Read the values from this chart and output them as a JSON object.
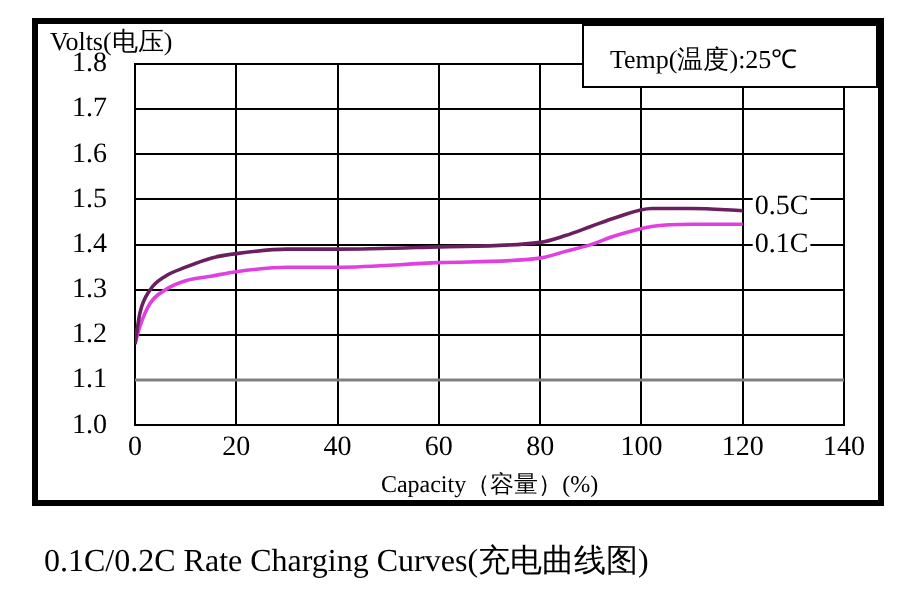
{
  "chart_data": {
    "type": "line",
    "title": "0.1C/0.2C Rate Charging Curves(充电曲线图)",
    "xlabel": "Capacity（容量）(%)",
    "ylabel": "Volts(电压)",
    "annotations": [
      "Temp(温度):25℃"
    ],
    "xlim": [
      0,
      140
    ],
    "xticks": [
      0,
      20,
      40,
      60,
      80,
      100,
      120,
      140
    ],
    "ylim": [
      1.0,
      1.8
    ],
    "yticks": [
      {
        "value": 1.0,
        "label": "1.0"
      },
      1.1,
      1.2,
      1.3,
      1.4,
      1.5,
      1.6,
      1.7,
      1.8
    ],
    "grid": true,
    "legend": false,
    "marker": "none",
    "line_style": "solid",
    "ref_lines": [
      {
        "axis": "y",
        "value": 1.1,
        "color": "#808080"
      }
    ],
    "series": [
      {
        "name": "0.5C",
        "color": "#6b1f5f",
        "x": [
          0,
          1,
          3,
          6,
          10,
          15,
          20,
          30,
          40,
          60,
          80,
          85,
          90,
          95,
          102,
          110,
          120
        ],
        "values": [
          1.18,
          1.25,
          1.3,
          1.33,
          1.35,
          1.37,
          1.38,
          1.39,
          1.39,
          1.395,
          1.405,
          1.42,
          1.44,
          1.46,
          1.48,
          1.48,
          1.475
        ]
      },
      {
        "name": "0.1C",
        "color": "#e040e0",
        "x": [
          0,
          1,
          3,
          6,
          10,
          15,
          20,
          30,
          40,
          60,
          80,
          85,
          90,
          95,
          102,
          110,
          120
        ],
        "values": [
          1.18,
          1.22,
          1.27,
          1.3,
          1.32,
          1.33,
          1.34,
          1.35,
          1.35,
          1.36,
          1.37,
          1.385,
          1.4,
          1.42,
          1.44,
          1.445,
          1.445
        ]
      }
    ]
  }
}
